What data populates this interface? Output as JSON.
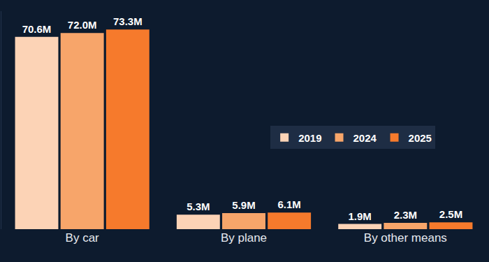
{
  "chart_data": {
    "type": "bar",
    "categories": [
      "By car",
      "By plane",
      "By other means"
    ],
    "series": [
      {
        "name": "2019",
        "color": "#fcd3b6",
        "values": [
          70.6,
          5.3,
          1.9
        ],
        "value_labels": [
          "70.6M",
          "5.3M",
          "1.9M"
        ]
      },
      {
        "name": "2024",
        "color": "#f7a56a",
        "values": [
          72.0,
          5.9,
          2.3
        ],
        "value_labels": [
          "72.0M",
          "5.9M",
          "2.3M"
        ]
      },
      {
        "name": "2025",
        "color": "#f67a2c",
        "values": [
          73.3,
          6.1,
          2.5
        ],
        "value_labels": [
          "73.3M",
          "6.1M",
          "2.5M"
        ]
      }
    ],
    "ylim": [
      0,
      80
    ],
    "yticks": [],
    "grid": false,
    "legend": "right",
    "data_labels": true,
    "tick_labels": "x"
  }
}
